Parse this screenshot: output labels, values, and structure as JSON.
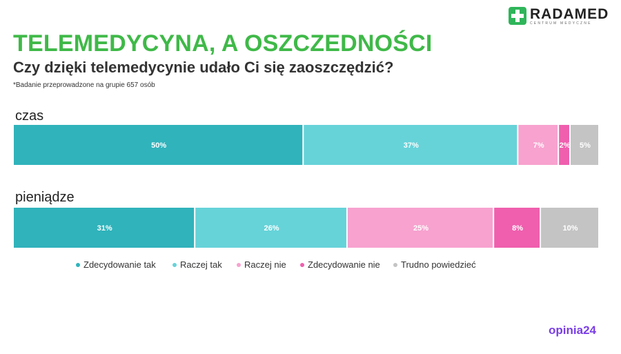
{
  "logo": {
    "name": "RADAMED",
    "tagline": "CENTRUM MEDYCZNE"
  },
  "header": {
    "title": "TELEMEDYCYNA, A OSZCZEDNOŚCI",
    "subtitle": "Czy dzięki telemedycynie udało Ci się zaoszczędzić?",
    "footnote": "*Badanie przeprowadzone na grupie 657 osób"
  },
  "footer_logo": {
    "part1": "opinia",
    "part2": "24"
  },
  "chart_data": {
    "type": "bar",
    "orientation": "horizontal",
    "stacked": true,
    "normalized_to_percent": true,
    "categories": [
      "czas",
      "pieniądze"
    ],
    "series": [
      {
        "name": "Zdecydowanie tak",
        "color": "#30b3bb",
        "values": [
          50,
          31
        ],
        "labels": [
          "50%",
          "31%"
        ]
      },
      {
        "name": "Raczej tak",
        "color": "#66d3d9",
        "values": [
          37,
          26
        ],
        "labels": [
          "37%",
          "26%"
        ]
      },
      {
        "name": "Raczej nie",
        "color": "#f7a2cf",
        "values": [
          7,
          25
        ],
        "labels": [
          "7%",
          "25%"
        ]
      },
      {
        "name": "Zdecydowanie nie",
        "color": "#ef5fae",
        "values": [
          2,
          8
        ],
        "labels": [
          "2%",
          "8%"
        ]
      },
      {
        "name": "Trudno powiedzieć",
        "color": "#c4c4c4",
        "values": [
          5,
          10
        ],
        "labels": [
          "5%",
          "10%"
        ]
      }
    ],
    "legend_position": "bottom",
    "grid": false
  }
}
